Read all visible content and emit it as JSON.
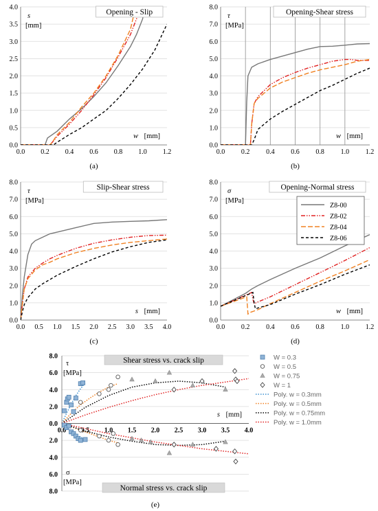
{
  "chart_data": [
    {
      "id": "a",
      "type": "line",
      "caption": "(a)",
      "title": "Opening - Slip",
      "xlabel_sym": "w",
      "xlabel_unit": "[mm]",
      "ylabel_sym": "s",
      "ylabel_unit": "[mm]",
      "xlim": [
        0,
        1.2
      ],
      "ylim": [
        0,
        4
      ],
      "xticks": [
        "0.0",
        "0.2",
        "0.4",
        "0.6",
        "0.8",
        "1.0",
        "1.2"
      ],
      "yticks": [
        "0.0",
        "0.5",
        "1.0",
        "1.5",
        "2.0",
        "2.5",
        "3.0",
        "3.5",
        "4.0"
      ],
      "series": [
        {
          "name": "Z8-00",
          "x": [
            0,
            0.2,
            0.22,
            0.3,
            0.4,
            0.5,
            0.6,
            0.7,
            0.8,
            0.9,
            0.95,
            1.0,
            1.02
          ],
          "y": [
            0,
            0,
            0.2,
            0.4,
            0.75,
            1.05,
            1.4,
            1.8,
            2.3,
            2.85,
            3.2,
            3.65,
            4.0
          ]
        },
        {
          "name": "Z8-02",
          "x": [
            0,
            0.24,
            0.26,
            0.3,
            0.4,
            0.5,
            0.6,
            0.7,
            0.8,
            0.9,
            0.95,
            0.98
          ],
          "y": [
            0,
            0,
            0.08,
            0.25,
            0.6,
            1.0,
            1.45,
            1.95,
            2.55,
            3.2,
            3.65,
            4.0
          ]
        },
        {
          "name": "Z8-04",
          "x": [
            0,
            0.24,
            0.26,
            0.3,
            0.4,
            0.5,
            0.6,
            0.7,
            0.8,
            0.9,
            0.94
          ],
          "y": [
            0,
            0,
            0.08,
            0.3,
            0.65,
            1.1,
            1.5,
            2.0,
            2.6,
            3.35,
            3.95
          ]
        },
        {
          "name": "Z8-06",
          "x": [
            0,
            0.27,
            0.3,
            0.4,
            0.5,
            0.6,
            0.7,
            0.8,
            0.9,
            1.0,
            1.1,
            1.2
          ],
          "y": [
            0,
            0,
            0.08,
            0.3,
            0.5,
            0.75,
            1.0,
            1.35,
            1.75,
            2.2,
            2.75,
            3.5
          ]
        }
      ]
    },
    {
      "id": "b",
      "type": "line",
      "caption": "(b)",
      "title": "Opening-Shear stress",
      "xlabel_sym": "w",
      "xlabel_unit": "[mm]",
      "ylabel_sym": "τ",
      "ylabel_unit": "[MPa]",
      "xlim": [
        0,
        1.2
      ],
      "ylim": [
        0,
        8
      ],
      "xticks": [
        "0.0",
        "0.2",
        "0.4",
        "0.6",
        "0.8",
        "1.0",
        "1.2"
      ],
      "yticks": [
        "0.0",
        "1.0",
        "2.0",
        "3.0",
        "4.0",
        "5.0",
        "6.0",
        "7.0",
        "8.0"
      ],
      "vgrid": [
        0.2,
        0.4,
        0.6,
        0.8,
        1.0
      ],
      "series": [
        {
          "name": "Z8-00",
          "x": [
            0,
            0.2,
            0.21,
            0.22,
            0.25,
            0.3,
            0.4,
            0.5,
            0.6,
            0.7,
            0.8,
            0.9,
            1.0,
            1.1,
            1.2
          ],
          "y": [
            0,
            0,
            2.5,
            4.0,
            4.5,
            4.7,
            4.95,
            5.15,
            5.35,
            5.55,
            5.7,
            5.72,
            5.78,
            5.85,
            5.87
          ]
        },
        {
          "name": "Z8-02",
          "x": [
            0,
            0.24,
            0.25,
            0.27,
            0.3,
            0.4,
            0.5,
            0.6,
            0.7,
            0.8,
            0.9,
            1.0,
            1.05,
            1.1,
            1.2
          ],
          "y": [
            0,
            0,
            1.2,
            2.4,
            2.8,
            3.5,
            3.9,
            4.2,
            4.45,
            4.65,
            4.85,
            4.95,
            4.95,
            4.9,
            4.9
          ]
        },
        {
          "name": "Z8-04",
          "x": [
            0,
            0.24,
            0.25,
            0.27,
            0.3,
            0.4,
            0.5,
            0.6,
            0.7,
            0.8,
            0.9,
            1.0,
            1.1,
            1.2
          ],
          "y": [
            0,
            0,
            1.2,
            2.4,
            2.7,
            3.3,
            3.65,
            3.9,
            4.15,
            4.35,
            4.5,
            4.65,
            4.85,
            4.95
          ]
        },
        {
          "name": "Z8-06",
          "x": [
            0,
            0.25,
            0.27,
            0.3,
            0.4,
            0.5,
            0.6,
            0.7,
            0.8,
            0.9,
            1.0,
            1.1,
            1.2
          ],
          "y": [
            0,
            0,
            0.3,
            0.9,
            1.5,
            1.95,
            2.35,
            2.75,
            3.15,
            3.45,
            3.8,
            4.15,
            4.45
          ]
        }
      ]
    },
    {
      "id": "c",
      "type": "line",
      "caption": "(c)",
      "title": "Slip-Shear stress",
      "xlabel_sym": "s",
      "xlabel_unit": "[mm]",
      "ylabel_sym": "τ",
      "ylabel_unit": "[MPa]",
      "xlim": [
        0,
        4
      ],
      "ylim": [
        0,
        8
      ],
      "xticks": [
        "0.0",
        "0.5",
        "1.0",
        "1.5",
        "2.0",
        "2.5",
        "3.0",
        "3.5",
        "4.0"
      ],
      "yticks": [
        "0.0",
        "1.0",
        "2.0",
        "3.0",
        "4.0",
        "5.0",
        "6.0",
        "7.0",
        "8.0"
      ],
      "series": [
        {
          "name": "Z8-00",
          "x": [
            0,
            0.05,
            0.1,
            0.2,
            0.3,
            0.4,
            0.6,
            0.8,
            1.0,
            1.5,
            2.0,
            2.5,
            3.0,
            3.5,
            4.0
          ],
          "y": [
            0,
            1.5,
            2.5,
            3.8,
            4.4,
            4.6,
            4.8,
            5.0,
            5.1,
            5.35,
            5.6,
            5.68,
            5.72,
            5.75,
            5.82
          ]
        },
        {
          "name": "Z8-02",
          "x": [
            0,
            0.05,
            0.1,
            0.2,
            0.4,
            0.6,
            0.8,
            1.0,
            1.5,
            2.0,
            2.5,
            3.0,
            3.5,
            4.0
          ],
          "y": [
            0,
            1.0,
            1.8,
            2.5,
            3.0,
            3.3,
            3.55,
            3.75,
            4.15,
            4.45,
            4.65,
            4.8,
            4.9,
            4.92
          ]
        },
        {
          "name": "Z8-04",
          "x": [
            0,
            0.05,
            0.1,
            0.2,
            0.4,
            0.6,
            0.8,
            1.0,
            1.5,
            2.0,
            2.5,
            3.0,
            3.5,
            4.0
          ],
          "y": [
            0,
            1.0,
            1.8,
            2.4,
            2.9,
            3.2,
            3.35,
            3.55,
            3.9,
            4.15,
            4.35,
            4.5,
            4.6,
            4.7
          ]
        },
        {
          "name": "Z8-06",
          "x": [
            0,
            0.05,
            0.1,
            0.2,
            0.4,
            0.6,
            0.8,
            1.0,
            1.5,
            2.0,
            2.5,
            3.0,
            3.5,
            4.0
          ],
          "y": [
            0,
            0.5,
            0.9,
            1.3,
            1.8,
            2.1,
            2.35,
            2.6,
            3.1,
            3.55,
            3.95,
            4.25,
            4.5,
            4.65
          ]
        }
      ]
    },
    {
      "id": "d",
      "type": "line",
      "caption": "(d)",
      "title": "Opening-Normal stress",
      "xlabel_sym": "w",
      "xlabel_unit": "[mm]",
      "ylabel_sym": "σ",
      "ylabel_unit": "[MPa]",
      "xlim": [
        0,
        1.2
      ],
      "ylim": [
        0,
        8
      ],
      "xticks": [
        "0.0",
        "0.2",
        "0.4",
        "0.6",
        "0.8",
        "1.0",
        "1.2"
      ],
      "yticks": [
        "0.0",
        "1.0",
        "2.0",
        "3.0",
        "4.0",
        "5.0",
        "6.0",
        "7.0",
        "8.0"
      ],
      "legend_position": "top-right",
      "series": [
        {
          "name": "Z8-00",
          "x": [
            0,
            0.2,
            0.25,
            0.3,
            0.4,
            0.6,
            0.8,
            1.0,
            1.2
          ],
          "y": [
            0.8,
            1.55,
            1.8,
            2.0,
            2.35,
            3.0,
            3.6,
            4.3,
            4.95
          ]
        },
        {
          "name": "Z8-02",
          "x": [
            0,
            0.25,
            0.26,
            0.27,
            0.3,
            0.4,
            0.6,
            0.8,
            1.0,
            1.2
          ],
          "y": [
            0.8,
            1.6,
            1.2,
            0.95,
            1.05,
            1.35,
            2.05,
            2.75,
            3.45,
            4.2
          ]
        },
        {
          "name": "Z8-04",
          "x": [
            0,
            0.21,
            0.22,
            0.24,
            0.3,
            0.4,
            0.6,
            0.8,
            1.0,
            1.2
          ],
          "y": [
            0.8,
            1.35,
            0.35,
            0.45,
            0.6,
            0.95,
            1.6,
            2.25,
            2.85,
            3.5
          ]
        },
        {
          "name": "Z8-06",
          "x": [
            0,
            0.26,
            0.27,
            0.28,
            0.3,
            0.4,
            0.6,
            0.8,
            1.0,
            1.2
          ],
          "y": [
            0.8,
            1.6,
            1.0,
            0.65,
            0.7,
            0.9,
            1.5,
            2.05,
            2.65,
            3.2
          ]
        }
      ]
    },
    {
      "id": "e",
      "type": "scatter",
      "caption": "(e)",
      "title_top": "Shear stress vs. crack slip",
      "title_bottom": "Normal stress vs. crack slip",
      "xlabel_sym": "s",
      "xlabel_unit": "[mm]",
      "ylabel_top_sym": "τ",
      "ylabel_top_unit": "[MPa]",
      "ylabel_bottom_sym": "σ",
      "ylabel_bottom_unit": "[MPa]",
      "xlim": [
        0,
        4
      ],
      "ylim": [
        -8,
        8
      ],
      "xticks": [
        "0.0",
        "0.5",
        "1.0",
        "1.5",
        "2.0",
        "2.5",
        "3.0",
        "3.5",
        "4.0"
      ],
      "yticks": [
        "8.0",
        "6.0",
        "4.0",
        "2.0",
        "0.0",
        "2.0",
        "4.0",
        "6.0",
        "8.0"
      ],
      "legend_position": "right",
      "series": [
        {
          "name": "W = 0.3",
          "marker": "square",
          "x": [
            0.05,
            0.1,
            0.12,
            0.15,
            0.2,
            0.25,
            0.3,
            0.4,
            0.05,
            0.1,
            0.15,
            0.2,
            0.25,
            0.3,
            0.35,
            0.4,
            0.45,
            0.5
          ],
          "y": [
            1.5,
            2.5,
            2.9,
            3.1,
            2.2,
            1.4,
            3.0,
            4.7,
            -0.2,
            -0.5,
            -0.3,
            -1.0,
            -1.2,
            -1.5,
            -1.8,
            -2.0,
            4.8,
            -1.9
          ]
        },
        {
          "name": "W = 0.5",
          "marker": "circle",
          "x": [
            0.4,
            0.8,
            1.0,
            1.05,
            1.2,
            0.4,
            0.8,
            1.0,
            1.1,
            1.2
          ],
          "y": [
            2.5,
            3.5,
            4.0,
            4.5,
            5.5,
            -0.8,
            -1.5,
            -2.0,
            -1.2,
            -2.5
          ]
        },
        {
          "name": "W = 0.75",
          "marker": "triangle",
          "x": [
            1.5,
            2.0,
            2.3,
            2.8,
            3.5,
            1.5,
            1.7,
            1.9,
            2.3,
            2.8,
            3.5
          ],
          "y": [
            5.2,
            5.0,
            6.0,
            4.5,
            4.0,
            -1.8,
            -2.0,
            -2.2,
            -3.5,
            -2.5,
            -2.2
          ]
        },
        {
          "name": "W = 1",
          "marker": "diamond",
          "x": [
            2.4,
            3.0,
            3.7,
            3.72,
            3.75,
            2.4,
            3.3,
            3.7,
            3.72
          ],
          "y": [
            4.0,
            5.0,
            6.2,
            5.2,
            5.0,
            -2.5,
            -3.0,
            -3.3,
            -4.5
          ]
        },
        {
          "name": "Poly. w = 0.3mm",
          "line": true,
          "color": "#3a8fd0",
          "x": [
            0,
            0.1,
            0.2,
            0.3,
            0.4,
            0.5
          ],
          "y": [
            0,
            1.2,
            2.3,
            3.3,
            4.1,
            4.8
          ],
          "x2": [
            0,
            0.1,
            0.2,
            0.3,
            0.4,
            0.5
          ],
          "y2": [
            0,
            -0.5,
            -0.9,
            -1.3,
            -1.6,
            -1.9
          ]
        },
        {
          "name": "Poly. w = 0.5mm",
          "line": true,
          "color": "#f08020",
          "x": [
            0,
            0.2,
            0.4,
            0.6,
            0.8,
            1.0,
            1.2
          ],
          "y": [
            0,
            1.2,
            2.2,
            3.0,
            3.7,
            4.3,
            4.7
          ],
          "x2": [
            0,
            0.2,
            0.4,
            0.6,
            0.8,
            1.0,
            1.2
          ],
          "y2": [
            0,
            -0.4,
            -0.8,
            -1.2,
            -1.6,
            -2.0,
            -2.3
          ]
        },
        {
          "name": "Poly. w = 0.75mm",
          "line": true,
          "color": "#000000",
          "x": [
            0,
            0.5,
            1.0,
            1.5,
            2.0,
            2.5,
            3.0,
            3.5
          ],
          "y": [
            0,
            1.9,
            3.3,
            4.3,
            4.8,
            5.0,
            4.8,
            4.3
          ],
          "x2": [
            0,
            0.5,
            1.0,
            1.5,
            2.0,
            2.5,
            3.0,
            3.5
          ],
          "y2": [
            0,
            -0.9,
            -1.6,
            -2.1,
            -2.5,
            -2.6,
            -2.5,
            -2.1
          ]
        },
        {
          "name": "Poly. w = 1.0mm",
          "line": true,
          "color": "#e02020",
          "x": [
            0,
            0.5,
            1.0,
            1.5,
            2.0,
            2.5,
            3.0,
            3.5,
            4.0
          ],
          "y": [
            0,
            1.0,
            1.9,
            2.7,
            3.4,
            4.0,
            4.5,
            4.9,
            5.3
          ],
          "x2": [
            0,
            0.5,
            1.0,
            1.5,
            2.0,
            2.5,
            3.0,
            3.5,
            4.0
          ],
          "y2": [
            0,
            -0.6,
            -1.2,
            -1.7,
            -2.2,
            -2.6,
            -3.0,
            -3.3,
            -3.6
          ]
        }
      ]
    }
  ],
  "legend_main": [
    {
      "name": "Z8-00",
      "color": "#777777"
    },
    {
      "name": "Z8-02",
      "color": "#e02020"
    },
    {
      "name": "Z8-04",
      "color": "#f08020"
    },
    {
      "name": "Z8-06",
      "color": "#000000"
    }
  ]
}
